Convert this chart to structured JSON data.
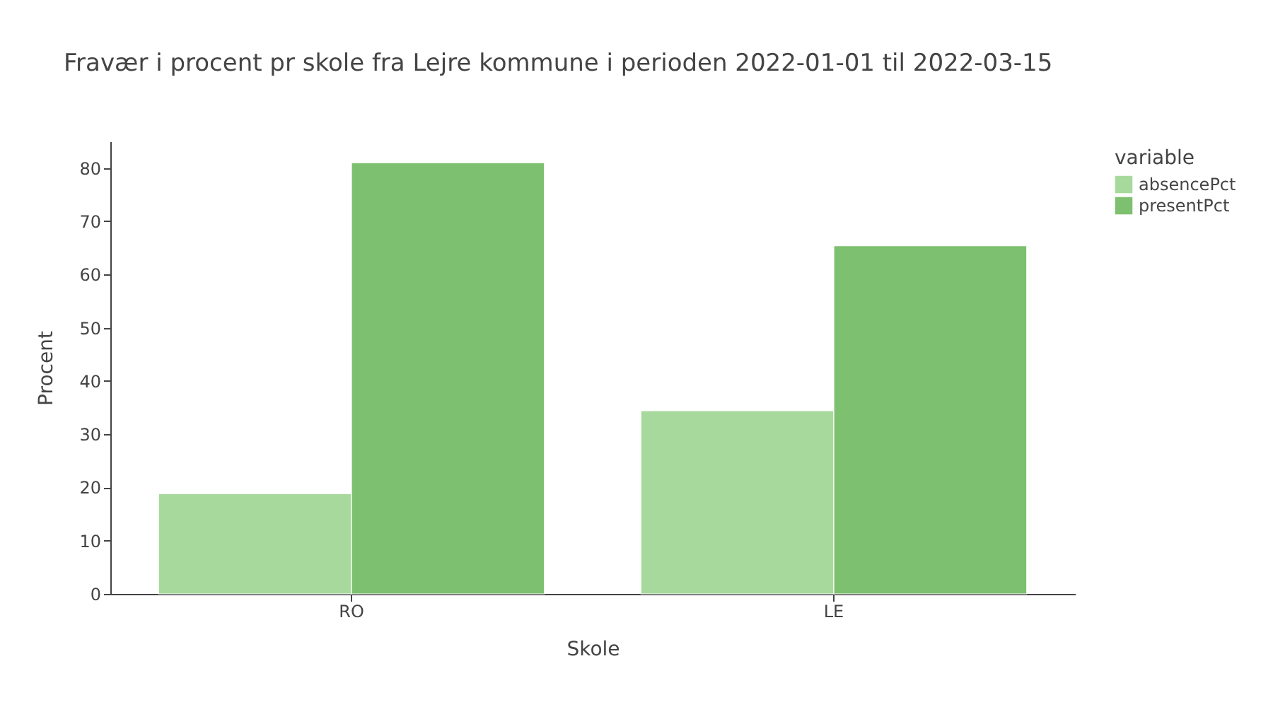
{
  "chart_data": {
    "type": "bar",
    "title": "Fravær i procent pr skole fra Lejre kommune i perioden 2022-01-01 til 2022-03-15",
    "xlabel": "Skole",
    "ylabel": "Procent",
    "legend_title": "variable",
    "categories": [
      "RO",
      "LE"
    ],
    "series": [
      {
        "name": "absencePct",
        "color": "#a8d99c",
        "values": [
          18.8,
          34.4
        ]
      },
      {
        "name": "presentPct",
        "color": "#7dc06f",
        "values": [
          81.0,
          65.4
        ]
      }
    ],
    "ylim": [
      0,
      85
    ],
    "yticks": [
      0,
      10,
      20,
      30,
      40,
      50,
      60,
      70,
      80
    ],
    "grid": false,
    "legend": "top right"
  }
}
